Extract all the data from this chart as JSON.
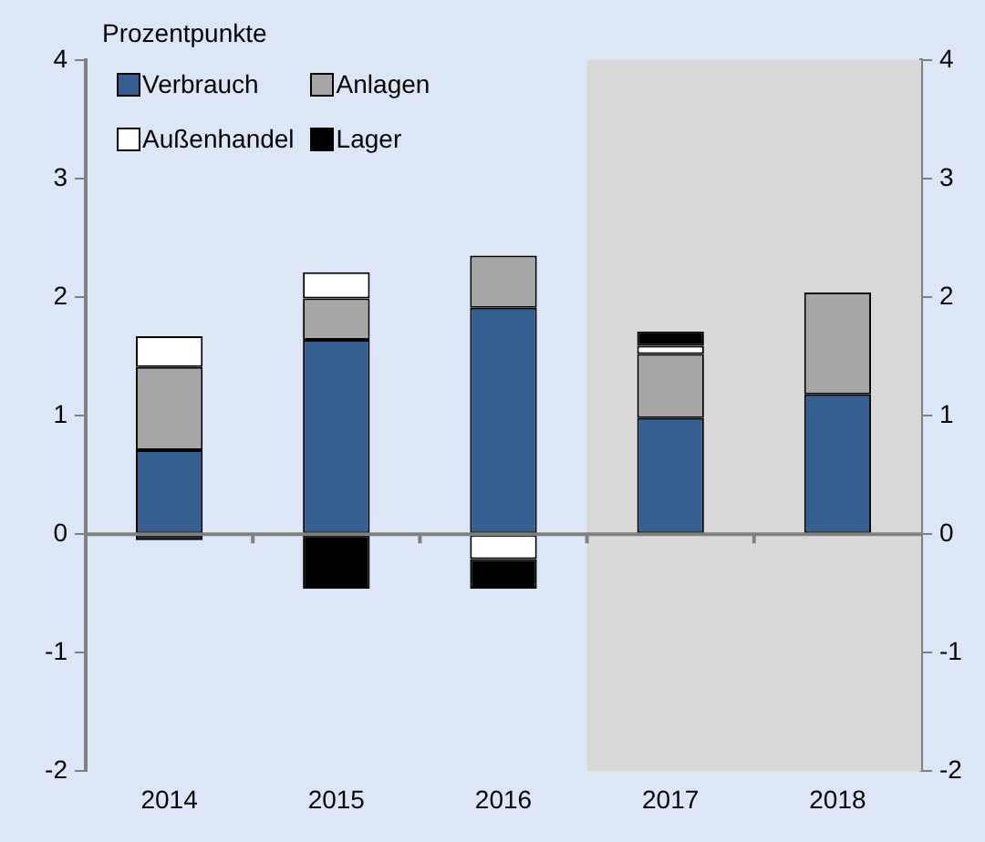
{
  "chart_data": {
    "type": "bar",
    "stacked": true,
    "ylabel": "Prozentpunkte",
    "categories": [
      "2014",
      "2015",
      "2016",
      "2017",
      "2018"
    ],
    "series": [
      {
        "name": "Verbrauch",
        "color": "#365f91",
        "values": [
          0.71,
          1.64,
          1.91,
          0.98,
          1.18
        ]
      },
      {
        "name": "Anlagen",
        "color": "#a6a6a6",
        "values": [
          0.7,
          0.35,
          0.44,
          0.54,
          0.86
        ]
      },
      {
        "name": "Außenhandel",
        "color": "#ffffff",
        "values": [
          0.26,
          0.22,
          -0.21,
          0.07,
          null
        ]
      },
      {
        "name": "Lager",
        "color": "#000000",
        "values": [
          -0.05,
          -0.46,
          -0.25,
          0.12,
          null
        ]
      }
    ],
    "ylim": [
      -2,
      4
    ],
    "yticks": [
      -2,
      -1,
      0,
      1,
      2,
      3,
      4
    ],
    "y2lim": [
      -2,
      4
    ],
    "y2ticks": [
      -2,
      -1,
      0,
      1,
      2,
      3,
      4
    ],
    "bands": [
      {
        "axis": "x",
        "from": "2017",
        "to": "2018",
        "color": "#d9d9d9"
      }
    ],
    "ref_lines": [
      {
        "axis": "y",
        "value": 0,
        "color": "#808080"
      }
    ],
    "legend": "top left",
    "grid": false
  }
}
